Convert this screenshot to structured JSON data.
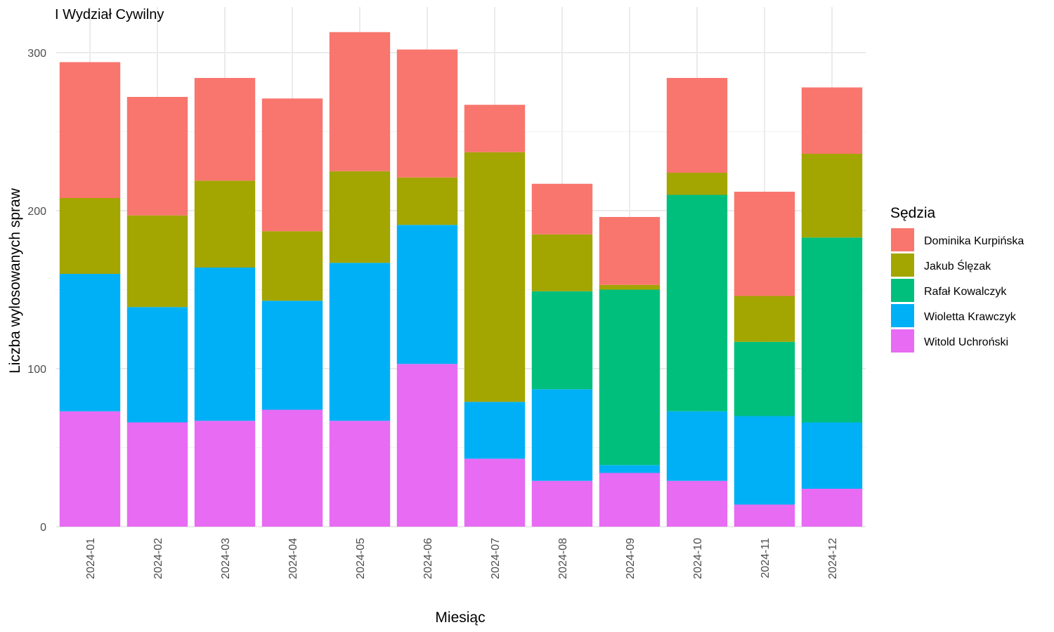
{
  "chart_data": {
    "type": "bar",
    "stacked": true,
    "title": "I Wydział Cywilny",
    "xlabel": "Miesiąc",
    "ylabel": "Liczba wylosowanych spraw",
    "ylim": [
      0,
      320
    ],
    "yticks": [
      0,
      100,
      200,
      300
    ],
    "grid": true,
    "legend": {
      "title": "Sędzia",
      "position": "right"
    },
    "categories": [
      "2024-01",
      "2024-02",
      "2024-03",
      "2024-04",
      "2024-05",
      "2024-06",
      "2024-07",
      "2024-08",
      "2024-09",
      "2024-10",
      "2024-11",
      "2024-12"
    ],
    "series": [
      {
        "name": "Witold Uchroński",
        "color": "#E76BF3",
        "values": [
          73,
          66,
          67,
          74,
          67,
          103,
          43,
          29,
          34,
          29,
          14,
          24
        ]
      },
      {
        "name": "Wioletta Krawczyk",
        "color": "#00B0F6",
        "values": [
          87,
          73,
          97,
          69,
          100,
          88,
          36,
          58,
          5,
          44,
          56,
          42
        ]
      },
      {
        "name": "Rafał Kowalczyk",
        "color": "#00BF7D",
        "values": [
          0,
          0,
          0,
          0,
          0,
          0,
          0,
          62,
          111,
          137,
          47,
          117
        ]
      },
      {
        "name": "Jakub Ślęzak",
        "color": "#A3A500",
        "values": [
          48,
          58,
          55,
          44,
          58,
          30,
          158,
          36,
          3,
          14,
          29,
          53
        ]
      },
      {
        "name": "Dominika Kurpińska",
        "color": "#F8766D",
        "values": [
          86,
          75,
          65,
          84,
          88,
          81,
          30,
          32,
          43,
          60,
          66,
          42
        ]
      }
    ],
    "legend_order": [
      "Dominika Kurpińska",
      "Jakub Ślęzak",
      "Rafał Kowalczyk",
      "Wioletta Krawczyk",
      "Witold Uchroński"
    ]
  }
}
